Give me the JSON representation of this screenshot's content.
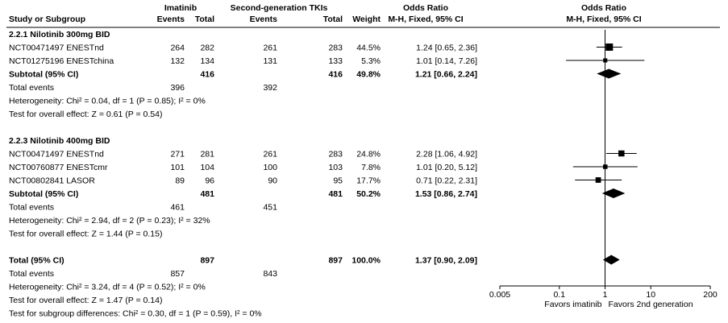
{
  "header": {
    "group1": "Imatinib",
    "group2": "Second-generation TKIs",
    "or_title": "Odds Ratio",
    "plot_title": "Odds Ratio",
    "study": "Study or Subgroup",
    "events1": "Events",
    "total1": "Total",
    "events2": "Events",
    "total2": "Total",
    "weight": "Weight",
    "or_method": "M-H, Fixed, 95% CI",
    "plot_method": "M-H, Fixed, 95% CI"
  },
  "rows": [
    {
      "kind": "heading",
      "label": "2.2.1 Nilotinib 300mg BID"
    },
    {
      "kind": "study",
      "label": "NCT00471497 ENESTnd",
      "e1": "264",
      "t1": "282",
      "e2": "261",
      "t2": "283",
      "weight": "44.5%",
      "or": "1.24 [0.65, 2.36]",
      "est": 1.24,
      "lo": 0.65,
      "hi": 2.36,
      "w": 44.5
    },
    {
      "kind": "study",
      "label": "NCT01275196 ENESTchina",
      "e1": "132",
      "t1": "134",
      "e2": "131",
      "t2": "133",
      "weight": "5.3%",
      "or": "1.01 [0.14, 7.26]",
      "est": 1.01,
      "lo": 0.14,
      "hi": 7.26,
      "w": 5.3
    },
    {
      "kind": "subtotal",
      "label": "Subtotal (95% CI)",
      "t1": "416",
      "t2": "416",
      "weight": "49.8%",
      "or": "1.21 [0.66, 2.24]",
      "est": 1.21,
      "lo": 0.66,
      "hi": 2.24
    },
    {
      "kind": "text",
      "label": "Total events",
      "e1": "396",
      "e2": "392"
    },
    {
      "kind": "text",
      "label": "Heterogeneity: Chi² = 0.04, df = 1 (P = 0.85); I² = 0%"
    },
    {
      "kind": "text",
      "label": "Test for overall effect: Z = 0.61 (P = 0.54)"
    },
    {
      "kind": "blank"
    },
    {
      "kind": "heading",
      "label": "2.2.3 Nilotinib 400mg BID"
    },
    {
      "kind": "study",
      "label": "NCT00471497 ENESTnd",
      "e1": "271",
      "t1": "281",
      "e2": "261",
      "t2": "283",
      "weight": "24.8%",
      "or": "2.28 [1.06, 4.92]",
      "est": 2.28,
      "lo": 1.06,
      "hi": 4.92,
      "w": 24.8
    },
    {
      "kind": "study",
      "label": "NCT00760877 ENESTcmr",
      "e1": "101",
      "t1": "104",
      "e2": "100",
      "t2": "103",
      "weight": "7.8%",
      "or": "1.01 [0.20, 5.12]",
      "est": 1.01,
      "lo": 0.2,
      "hi": 5.12,
      "w": 7.8
    },
    {
      "kind": "study",
      "label": "NCT00802841 LASOR",
      "e1": "89",
      "t1": "96",
      "e2": "90",
      "t2": "95",
      "weight": "17.7%",
      "or": "0.71 [0.22, 2.31]",
      "est": 0.71,
      "lo": 0.22,
      "hi": 2.31,
      "w": 17.7
    },
    {
      "kind": "subtotal",
      "label": "Subtotal (95% CI)",
      "t1": "481",
      "t2": "481",
      "weight": "50.2%",
      "or": "1.53 [0.86, 2.74]",
      "est": 1.53,
      "lo": 0.86,
      "hi": 2.74
    },
    {
      "kind": "text",
      "label": "Total events",
      "e1": "461",
      "e2": "451"
    },
    {
      "kind": "text",
      "label": "Heterogeneity: Chi² = 2.94, df = 2 (P = 0.23); I² = 32%"
    },
    {
      "kind": "text",
      "label": "Test for overall effect: Z = 1.44 (P = 0.15)"
    },
    {
      "kind": "blank"
    },
    {
      "kind": "total",
      "label": "Total (95% CI)",
      "t1": "897",
      "t2": "897",
      "weight": "100.0%",
      "or": "1.37 [0.90, 2.09]",
      "est": 1.37,
      "lo": 0.9,
      "hi": 2.09
    },
    {
      "kind": "text",
      "label": "Total events",
      "e1": "857",
      "e2": "843"
    },
    {
      "kind": "text",
      "label": "Heterogeneity: Chi² = 3.24, df = 4 (P = 0.52); I² = 0%"
    },
    {
      "kind": "text",
      "label": "Test for overall effect: Z = 1.47 (P = 0.14)"
    },
    {
      "kind": "text",
      "label": "Test for subgroup differences: Chi² = 0.30, df = 1 (P = 0.59), I² = 0%"
    }
  ],
  "axis": {
    "scale": "log",
    "range": [
      0.005,
      200
    ],
    "ticks": [
      {
        "value": 0.005,
        "label": "0.005"
      },
      {
        "value": 0.1,
        "label": "0.1"
      },
      {
        "value": 1,
        "label": "1"
      },
      {
        "value": 10,
        "label": "10"
      },
      {
        "value": 200,
        "label": "200"
      }
    ],
    "favors_left": "Favors imatinib",
    "favors_right": "Favors 2nd generation"
  },
  "chart_data": {
    "type": "forest",
    "scale": "log",
    "xlim": [
      0.005,
      200
    ],
    "xticks": [
      0.005,
      0.1,
      1,
      10,
      200
    ],
    "series": [
      {
        "label": "NCT00471497 ENESTnd",
        "estimate": 1.24,
        "ci": [
          0.65,
          2.36
        ],
        "weight": 44.5
      },
      {
        "label": "NCT01275196 ENESTchina",
        "estimate": 1.01,
        "ci": [
          0.14,
          7.26
        ],
        "weight": 5.3
      },
      {
        "label": "Subtotal (95% CI)",
        "estimate": 1.21,
        "ci": [
          0.66,
          2.24
        ],
        "weight": 49.8
      },
      {
        "label": "NCT00471497 ENESTnd",
        "estimate": 2.28,
        "ci": [
          1.06,
          4.92
        ],
        "weight": 24.8
      },
      {
        "label": "NCT00760877 ENESTcmr",
        "estimate": 1.01,
        "ci": [
          0.2,
          5.12
        ],
        "weight": 7.8
      },
      {
        "label": "NCT00802841 LASOR",
        "estimate": 0.71,
        "ci": [
          0.22,
          2.31
        ],
        "weight": 17.7
      },
      {
        "label": "Subtotal (95% CI)",
        "estimate": 1.53,
        "ci": [
          0.86,
          2.74
        ],
        "weight": 50.2
      },
      {
        "label": "Total (95% CI)",
        "estimate": 1.37,
        "ci": [
          0.9,
          2.09
        ],
        "weight": 100.0
      }
    ]
  }
}
